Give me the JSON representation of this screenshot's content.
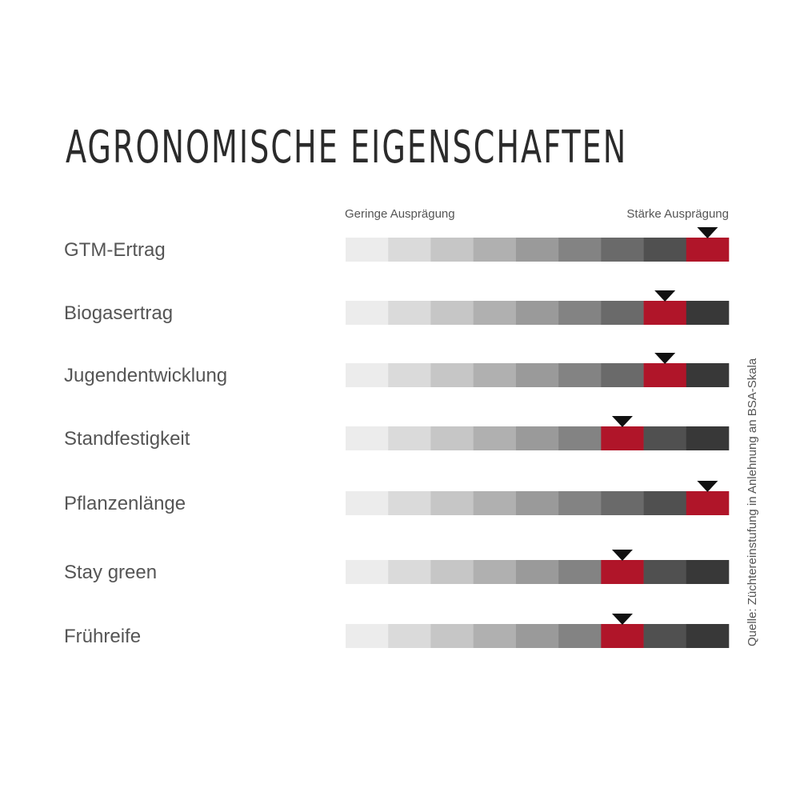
{
  "title": "AGRONOMISCHE EIGENSCHAFTEN",
  "scale": {
    "low_label": "Geringe Ausprägung",
    "high_label": "Stärke Ausprägung",
    "steps": 9
  },
  "source": "Quelle: Züchtereinstufung in Anlehnung an BSA-Skala",
  "colors": {
    "highlight": "#b01529",
    "marker": "#111111",
    "gradient": [
      "#ececec",
      "#dadada",
      "#c6c6c6",
      "#b0b0b0",
      "#9a9a9a",
      "#838383",
      "#6a6a6a",
      "#505050",
      "#383838"
    ]
  },
  "chart_data": {
    "type": "rating-scale",
    "scale_min": 1,
    "scale_max": 9,
    "categories": [
      "GTM-Ertrag",
      "Biogasertrag",
      "Jugendentwicklung",
      "Standfestigkeit",
      "Pflanzenlänge",
      "Stay green",
      "Frühreife"
    ],
    "values": [
      9,
      8,
      8,
      7,
      9,
      7,
      7
    ]
  }
}
